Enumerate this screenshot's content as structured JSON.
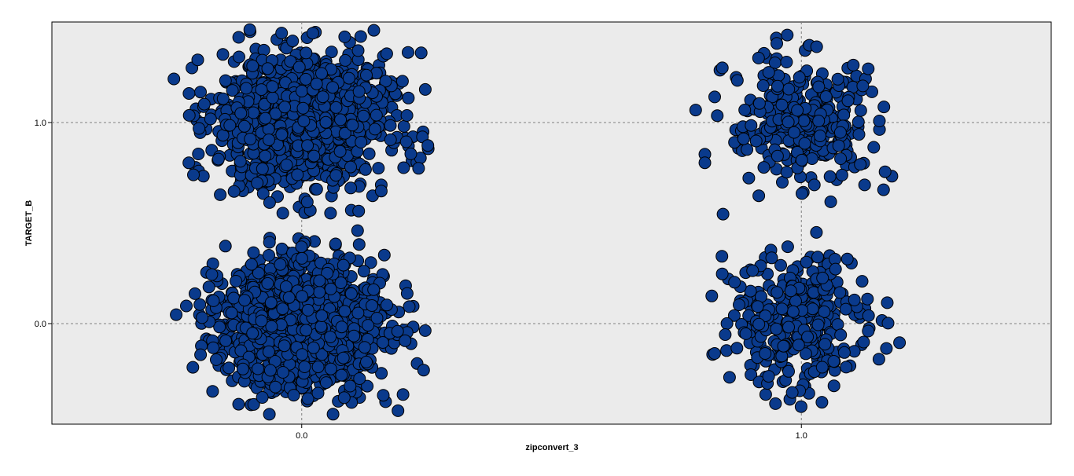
{
  "chart_data": {
    "type": "scatter",
    "xlabel": "zipconvert_3",
    "ylabel": "TARGET_B",
    "xticks": [
      "0.0",
      "1.0"
    ],
    "yticks": [
      "0.0",
      "1.0"
    ],
    "xtick_values": [
      0,
      1
    ],
    "ytick_values": [
      0,
      1
    ],
    "xlim": [
      -0.5,
      1.5
    ],
    "ylim": [
      -0.5,
      1.5
    ],
    "grid": true,
    "jitter": true,
    "series": [
      {
        "color": "#0a3a8c",
        "clusters": [
          {
            "x": 0,
            "y": 1,
            "count": 1100
          },
          {
            "x": 0,
            "y": 0,
            "count": 1100
          },
          {
            "x": 1,
            "y": 1,
            "count": 320
          },
          {
            "x": 1,
            "y": 0,
            "count": 330
          }
        ]
      }
    ]
  },
  "colors": {
    "plot_background": "#ebebeb",
    "grid": "#808080",
    "point_fill": "#0a3a8c",
    "point_stroke": "#000000"
  }
}
